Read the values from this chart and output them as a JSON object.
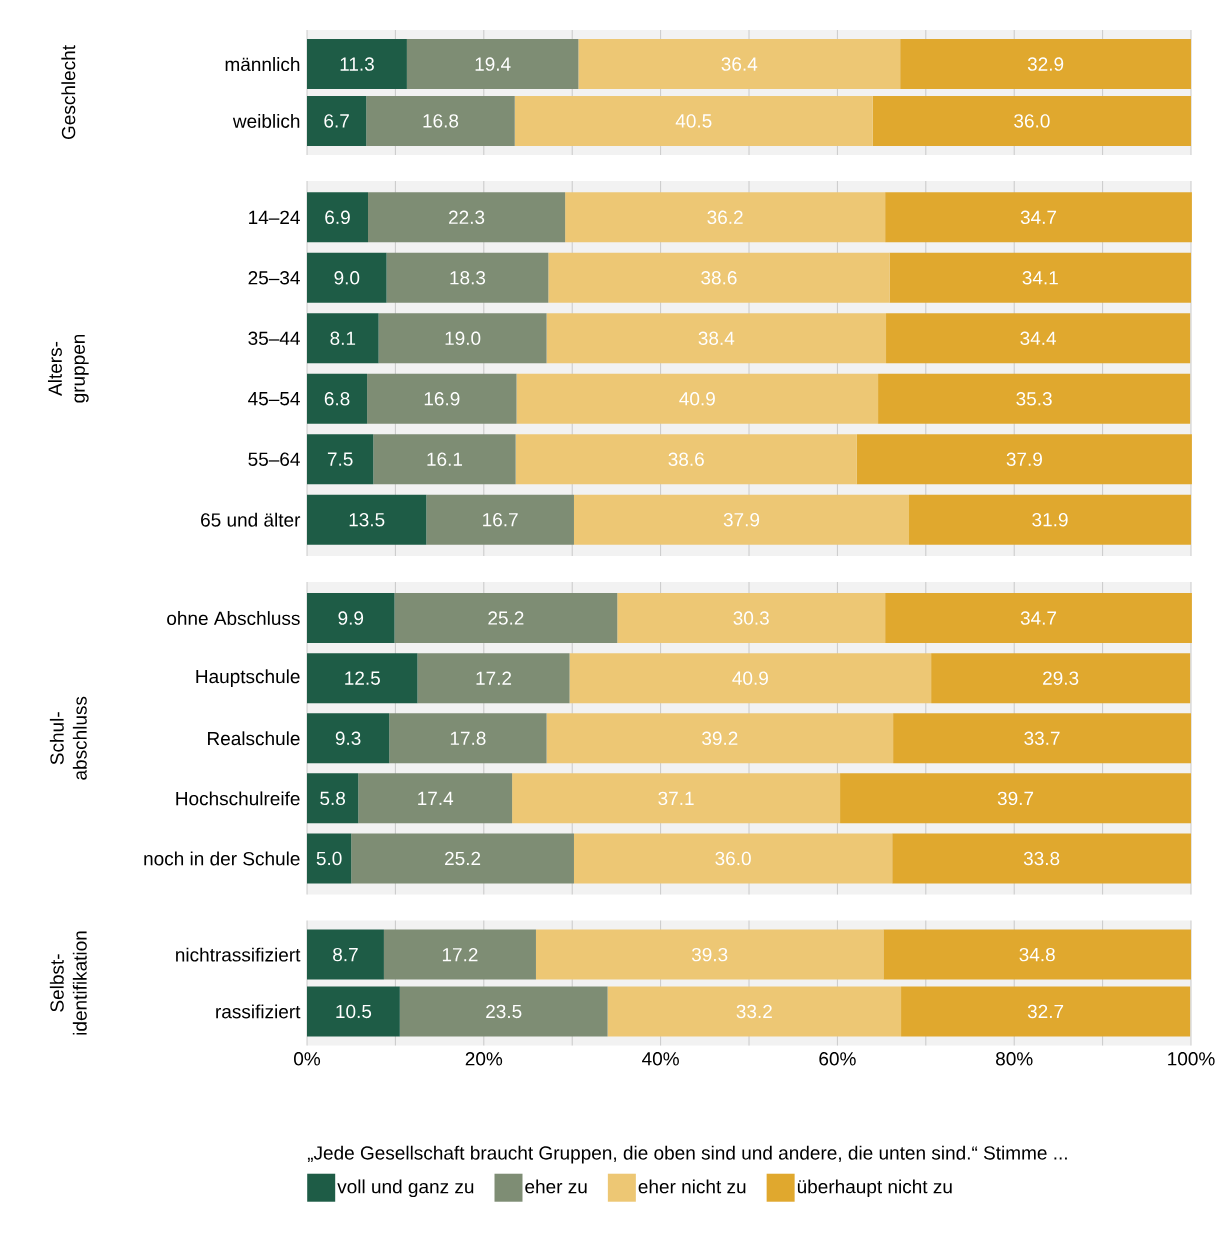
{
  "chart_data": [
    {
      "type": "bar",
      "orientation": "horizontal",
      "stacked": true,
      "grid": "x",
      "tick_labels": "y",
      "ylabel": "Geschlecht",
      "categories": [
        "männlich",
        "weiblich"
      ],
      "xlim": [
        0,
        100
      ],
      "xticks": [
        {
          "value": 0,
          "label": null
        },
        {
          "value": 10,
          "label": null
        },
        {
          "value": 20,
          "label": null
        },
        {
          "value": 30,
          "label": null
        },
        {
          "value": 40,
          "label": null
        },
        {
          "value": 50,
          "label": null
        },
        {
          "value": 60,
          "label": null
        },
        {
          "value": 70,
          "label": null
        },
        {
          "value": 80,
          "label": null
        },
        {
          "value": 90,
          "label": null
        },
        {
          "value": 100,
          "label": null
        }
      ],
      "series": [
        {
          "color": "#1e5c46",
          "values": [
            11.3,
            6.7
          ],
          "value_labels": [
            "11.3",
            "6.7"
          ]
        },
        {
          "color": "#7e8d74",
          "values": [
            19.4,
            16.8
          ],
          "value_labels": [
            "19.4",
            "16.8"
          ]
        },
        {
          "color": "#edc774",
          "values": [
            36.4,
            40.5
          ],
          "value_labels": [
            "36.4",
            "40.5"
          ]
        },
        {
          "color": "#e0a82e",
          "values": [
            32.9,
            36.0
          ],
          "value_labels": [
            "32.9",
            "36.0"
          ]
        }
      ]
    },
    {
      "type": "bar",
      "orientation": "horizontal",
      "stacked": true,
      "grid": "x",
      "tick_labels": "y",
      "ylabel": "Alters-gruppen",
      "categories": [
        "14–24",
        "25–34",
        "35–44",
        "45–54",
        "55–64",
        "65 und älter"
      ],
      "xlim": [
        0,
        100
      ],
      "xticks": [
        {
          "value": 0,
          "label": null
        },
        {
          "value": 10,
          "label": null
        },
        {
          "value": 20,
          "label": null
        },
        {
          "value": 30,
          "label": null
        },
        {
          "value": 40,
          "label": null
        },
        {
          "value": 50,
          "label": null
        },
        {
          "value": 60,
          "label": null
        },
        {
          "value": 70,
          "label": null
        },
        {
          "value": 80,
          "label": null
        },
        {
          "value": 90,
          "label": null
        },
        {
          "value": 100,
          "label": null
        }
      ],
      "series": [
        {
          "color": "#1e5c46",
          "values": [
            6.9,
            9.0,
            8.1,
            6.8,
            7.5,
            13.5
          ],
          "value_labels": [
            "6.9",
            "9.0",
            "8.1",
            "6.8",
            "7.5",
            "13.5"
          ]
        },
        {
          "color": "#7e8d74",
          "values": [
            22.3,
            18.3,
            19.0,
            16.9,
            16.1,
            16.7
          ],
          "value_labels": [
            "22.3",
            "18.3",
            "19.0",
            "16.9",
            "16.1",
            "16.7"
          ]
        },
        {
          "color": "#edc774",
          "values": [
            36.2,
            38.6,
            38.4,
            40.9,
            38.6,
            37.9
          ],
          "value_labels": [
            "36.2",
            "38.6",
            "38.4",
            "40.9",
            "38.6",
            "37.9"
          ]
        },
        {
          "color": "#e0a82e",
          "values": [
            34.7,
            34.1,
            34.4,
            35.3,
            37.9,
            31.9
          ],
          "value_labels": [
            "34.7",
            "34.1",
            "34.4",
            "35.3",
            "37.9",
            "31.9"
          ]
        }
      ]
    },
    {
      "type": "bar",
      "orientation": "horizontal",
      "stacked": true,
      "grid": "x",
      "tick_labels": "y",
      "ylabel": "Schul-abschluss",
      "categories": [
        "ohne Abschluss",
        "Hauptschule",
        "Realschule",
        "Hochschulreife",
        "noch in der Schule"
      ],
      "xlim": [
        0,
        100
      ],
      "xticks": [
        {
          "value": 0,
          "label": null
        },
        {
          "value": 10,
          "label": null
        },
        {
          "value": 20,
          "label": null
        },
        {
          "value": 30,
          "label": null
        },
        {
          "value": 40,
          "label": null
        },
        {
          "value": 50,
          "label": null
        },
        {
          "value": 60,
          "label": null
        },
        {
          "value": 70,
          "label": null
        },
        {
          "value": 80,
          "label": null
        },
        {
          "value": 90,
          "label": null
        },
        {
          "value": 100,
          "label": null
        }
      ],
      "series": [
        {
          "color": "#1e5c46",
          "values": [
            9.9,
            12.5,
            9.3,
            5.8,
            5.0
          ],
          "value_labels": [
            "9.9",
            "12.5",
            "9.3",
            "5.8",
            "5.0"
          ]
        },
        {
          "color": "#7e8d74",
          "values": [
            25.2,
            17.2,
            17.8,
            17.4,
            25.2
          ],
          "value_labels": [
            "25.2",
            "17.2",
            "17.8",
            "17.4",
            "25.2"
          ]
        },
        {
          "color": "#edc774",
          "values": [
            30.3,
            40.9,
            39.2,
            37.1,
            36.0
          ],
          "value_labels": [
            "30.3",
            "40.9",
            "39.2",
            "37.1",
            "36.0"
          ]
        },
        {
          "color": "#e0a82e",
          "values": [
            34.7,
            29.3,
            33.7,
            39.7,
            33.8
          ],
          "value_labels": [
            "34.7",
            "29.3",
            "33.7",
            "39.7",
            "33.8"
          ]
        }
      ]
    },
    {
      "type": "bar",
      "orientation": "horizontal",
      "stacked": true,
      "grid": "x",
      "ylabel": "Selbst-identifikation",
      "legend": "bottom",
      "legend_title": "„Jede Gesellschaft braucht Gruppen, die oben sind und andere, die unten sind.“ Stimme ...",
      "categories": [
        "nichtrassifiziert",
        "rassifiziert"
      ],
      "xlim": [
        0,
        100
      ],
      "xticks": [
        {
          "value": 0,
          "label": "0%"
        },
        {
          "value": 10,
          "label": null
        },
        {
          "value": 20,
          "label": "20%"
        },
        {
          "value": 30,
          "label": null
        },
        {
          "value": 40,
          "label": "40%"
        },
        {
          "value": 50,
          "label": null
        },
        {
          "value": 60,
          "label": "60%"
        },
        {
          "value": 70,
          "label": null
        },
        {
          "value": 80,
          "label": "80%"
        },
        {
          "value": 90,
          "label": null
        },
        {
          "value": 100,
          "label": "100%"
        }
      ],
      "series": [
        {
          "name": "voll und ganz zu",
          "color": "#1e5c46",
          "values": [
            8.7,
            10.5
          ],
          "value_labels": [
            "8.7",
            "10.5"
          ]
        },
        {
          "name": "eher zu",
          "color": "#7e8d74",
          "values": [
            17.2,
            23.5
          ],
          "value_labels": [
            "17.2",
            "23.5"
          ]
        },
        {
          "name": "eher nicht zu",
          "color": "#edc774",
          "values": [
            39.3,
            33.2
          ],
          "value_labels": [
            "39.3",
            "33.2"
          ]
        },
        {
          "name": "überhaupt nicht zu",
          "color": "#e0a82e",
          "values": [
            34.8,
            32.7
          ],
          "value_labels": [
            "34.8",
            "32.7"
          ]
        }
      ]
    }
  ]
}
